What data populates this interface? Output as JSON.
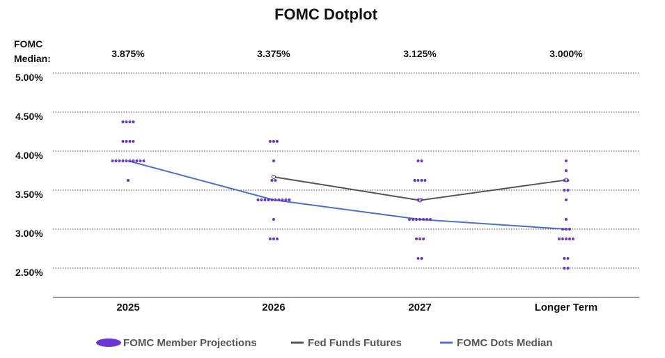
{
  "chart_data": {
    "type": "scatter",
    "title": "FOMC Dotplot",
    "median_row_label": [
      "FOMC",
      "Median:"
    ],
    "categories": [
      "2025",
      "2026",
      "2027",
      "Longer Term"
    ],
    "median_labels": [
      "3.875%",
      "3.375%",
      "3.125%",
      "3.000%"
    ],
    "yticks": [
      "5.00%",
      "4.50%",
      "4.00%",
      "3.50%",
      "3.00%",
      "2.50%"
    ],
    "ytick_values": [
      5.0,
      4.5,
      4.0,
      3.5,
      3.0,
      2.5
    ],
    "ylim": [
      2.125,
      5.0
    ],
    "grid": true,
    "legend_position": "bottom",
    "series": [
      {
        "name": "FOMC Member Projections",
        "color": "#6a35d4",
        "points": [
          {
            "category": "2025",
            "y": 4.375,
            "count": 4
          },
          {
            "category": "2025",
            "y": 4.125,
            "count": 4
          },
          {
            "category": "2025",
            "y": 3.875,
            "count": 10
          },
          {
            "category": "2025",
            "y": 3.625,
            "count": 1
          },
          {
            "category": "2026",
            "y": 4.125,
            "count": 3
          },
          {
            "category": "2026",
            "y": 3.875,
            "count": 1
          },
          {
            "category": "2026",
            "y": 3.625,
            "count": 2
          },
          {
            "category": "2026",
            "y": 3.375,
            "count": 10
          },
          {
            "category": "2026",
            "y": 3.125,
            "count": 1
          },
          {
            "category": "2026",
            "y": 2.875,
            "count": 3
          },
          {
            "category": "2027",
            "y": 3.875,
            "count": 2
          },
          {
            "category": "2027",
            "y": 3.625,
            "count": 4
          },
          {
            "category": "2027",
            "y": 3.375,
            "count": 2
          },
          {
            "category": "2027",
            "y": 3.125,
            "count": 7
          },
          {
            "category": "2027",
            "y": 2.875,
            "count": 3
          },
          {
            "category": "2027",
            "y": 2.625,
            "count": 2
          },
          {
            "category": "Longer Term",
            "y": 3.875,
            "count": 1
          },
          {
            "category": "Longer Term",
            "y": 3.75,
            "count": 1
          },
          {
            "category": "Longer Term",
            "y": 3.625,
            "count": 2
          },
          {
            "category": "Longer Term",
            "y": 3.5,
            "count": 2
          },
          {
            "category": "Longer Term",
            "y": 3.375,
            "count": 1
          },
          {
            "category": "Longer Term",
            "y": 3.125,
            "count": 1
          },
          {
            "category": "Longer Term",
            "y": 3.0,
            "count": 3
          },
          {
            "category": "Longer Term",
            "y": 2.875,
            "count": 5
          },
          {
            "category": "Longer Term",
            "y": 2.625,
            "count": 2
          },
          {
            "category": "Longer Term",
            "y": 2.5,
            "count": 2
          }
        ]
      },
      {
        "name": "Fed Funds Futures",
        "color": "#555555",
        "type": "line",
        "values": [
          null,
          3.67,
          3.37,
          3.63
        ]
      },
      {
        "name": "FOMC Dots Median",
        "color": "#4a72c2",
        "type": "line",
        "values": [
          3.875,
          3.375,
          3.125,
          3.0
        ]
      }
    ]
  }
}
